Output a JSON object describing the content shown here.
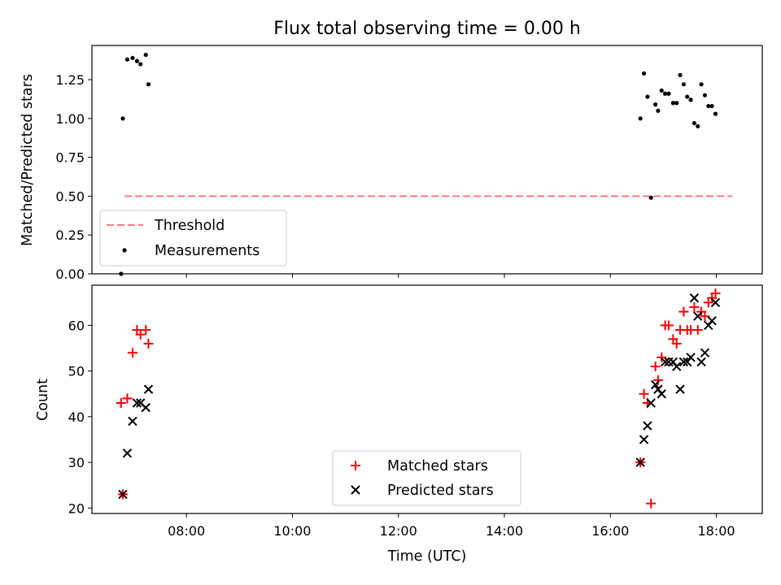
{
  "chart_data": [
    {
      "type": "scatter",
      "title": "Flux total observing time = 0.00 h",
      "xlabel": "",
      "ylabel": "Matched/Predicted stars",
      "xlim": [
        "06:13",
        "18:52"
      ],
      "ylim": [
        0.0,
        1.47
      ],
      "yticks": [
        0.0,
        0.25,
        0.5,
        0.75,
        1.0,
        1.25
      ],
      "yticklabels": [
        "0.00",
        "0.25",
        "0.50",
        "0.75",
        "1.00",
        "1.25"
      ],
      "grid": false,
      "legend_position": "lower-left",
      "series": [
        {
          "name": "Threshold",
          "kind": "dashed-line",
          "color": "#ff7f7f",
          "x": [
            "06:50",
            "18:18"
          ],
          "y": [
            0.5,
            0.5
          ]
        },
        {
          "name": "Measurements",
          "kind": "dots",
          "color": "#000000",
          "points": [
            [
              "06:46",
              0.0
            ],
            [
              "06:48",
              1.0
            ],
            [
              "06:53",
              1.38
            ],
            [
              "06:59",
              1.39
            ],
            [
              "07:04",
              1.37
            ],
            [
              "07:08",
              1.35
            ],
            [
              "07:14",
              1.41
            ],
            [
              "07:17",
              1.22
            ],
            [
              "16:34",
              1.0
            ],
            [
              "16:38",
              1.29
            ],
            [
              "16:42",
              1.14
            ],
            [
              "16:46",
              0.49
            ],
            [
              "16:51",
              1.09
            ],
            [
              "16:54",
              1.05
            ],
            [
              "16:58",
              1.18
            ],
            [
              "17:02",
              1.16
            ],
            [
              "17:06",
              1.16
            ],
            [
              "17:11",
              1.1
            ],
            [
              "17:15",
              1.1
            ],
            [
              "17:19",
              1.28
            ],
            [
              "17:23",
              1.22
            ],
            [
              "17:27",
              1.14
            ],
            [
              "17:31",
              1.12
            ],
            [
              "17:35",
              0.97
            ],
            [
              "17:39",
              0.95
            ],
            [
              "17:43",
              1.22
            ],
            [
              "17:47",
              1.15
            ],
            [
              "17:51",
              1.08
            ],
            [
              "17:55",
              1.08
            ],
            [
              "17:59",
              1.03
            ]
          ]
        }
      ]
    },
    {
      "type": "scatter",
      "title": "",
      "xlabel": "Time (UTC)",
      "ylabel": "Count",
      "xlim": [
        "06:13",
        "18:52"
      ],
      "xticks": [
        "08:00",
        "10:00",
        "12:00",
        "14:00",
        "16:00",
        "18:00"
      ],
      "ylim": [
        18.8,
        68.8
      ],
      "yticks": [
        20,
        30,
        40,
        50,
        60
      ],
      "yticklabels": [
        "20",
        "30",
        "40",
        "50",
        "60"
      ],
      "grid": false,
      "legend_position": "lower-center",
      "series": [
        {
          "name": "Matched stars",
          "marker": "plus",
          "color": "#ff0000",
          "points": [
            [
              "06:46",
              43
            ],
            [
              "06:48",
              23
            ],
            [
              "06:53",
              44
            ],
            [
              "06:59",
              54
            ],
            [
              "07:04",
              59
            ],
            [
              "07:08",
              58
            ],
            [
              "07:14",
              59
            ],
            [
              "07:17",
              56
            ],
            [
              "16:34",
              30
            ],
            [
              "16:38",
              45
            ],
            [
              "16:42",
              43
            ],
            [
              "16:46",
              21
            ],
            [
              "16:51",
              51
            ],
            [
              "16:54",
              48
            ],
            [
              "16:58",
              53
            ],
            [
              "17:02",
              60
            ],
            [
              "17:06",
              60
            ],
            [
              "17:11",
              57
            ],
            [
              "17:15",
              56
            ],
            [
              "17:19",
              59
            ],
            [
              "17:23",
              63
            ],
            [
              "17:27",
              59
            ],
            [
              "17:31",
              59
            ],
            [
              "17:35",
              64
            ],
            [
              "17:39",
              59
            ],
            [
              "17:43",
              63
            ],
            [
              "17:47",
              62
            ],
            [
              "17:51",
              65
            ],
            [
              "17:55",
              66
            ],
            [
              "17:59",
              67
            ]
          ]
        },
        {
          "name": "Predicted stars",
          "marker": "x",
          "color": "#000000",
          "points": [
            [
              "06:48",
              23
            ],
            [
              "06:53",
              32
            ],
            [
              "06:59",
              39
            ],
            [
              "07:04",
              43
            ],
            [
              "07:08",
              43
            ],
            [
              "07:14",
              42
            ],
            [
              "07:17",
              46
            ],
            [
              "16:34",
              30
            ],
            [
              "16:38",
              35
            ],
            [
              "16:42",
              38
            ],
            [
              "16:46",
              43
            ],
            [
              "16:51",
              47
            ],
            [
              "16:54",
              46
            ],
            [
              "16:58",
              45
            ],
            [
              "17:02",
              52
            ],
            [
              "17:06",
              52
            ],
            [
              "17:11",
              52
            ],
            [
              "17:15",
              51
            ],
            [
              "17:19",
              46
            ],
            [
              "17:23",
              52
            ],
            [
              "17:27",
              52
            ],
            [
              "17:31",
              53
            ],
            [
              "17:35",
              66
            ],
            [
              "17:39",
              62
            ],
            [
              "17:43",
              52
            ],
            [
              "17:47",
              54
            ],
            [
              "17:51",
              60
            ],
            [
              "17:55",
              61
            ],
            [
              "17:59",
              65
            ]
          ]
        }
      ]
    }
  ]
}
